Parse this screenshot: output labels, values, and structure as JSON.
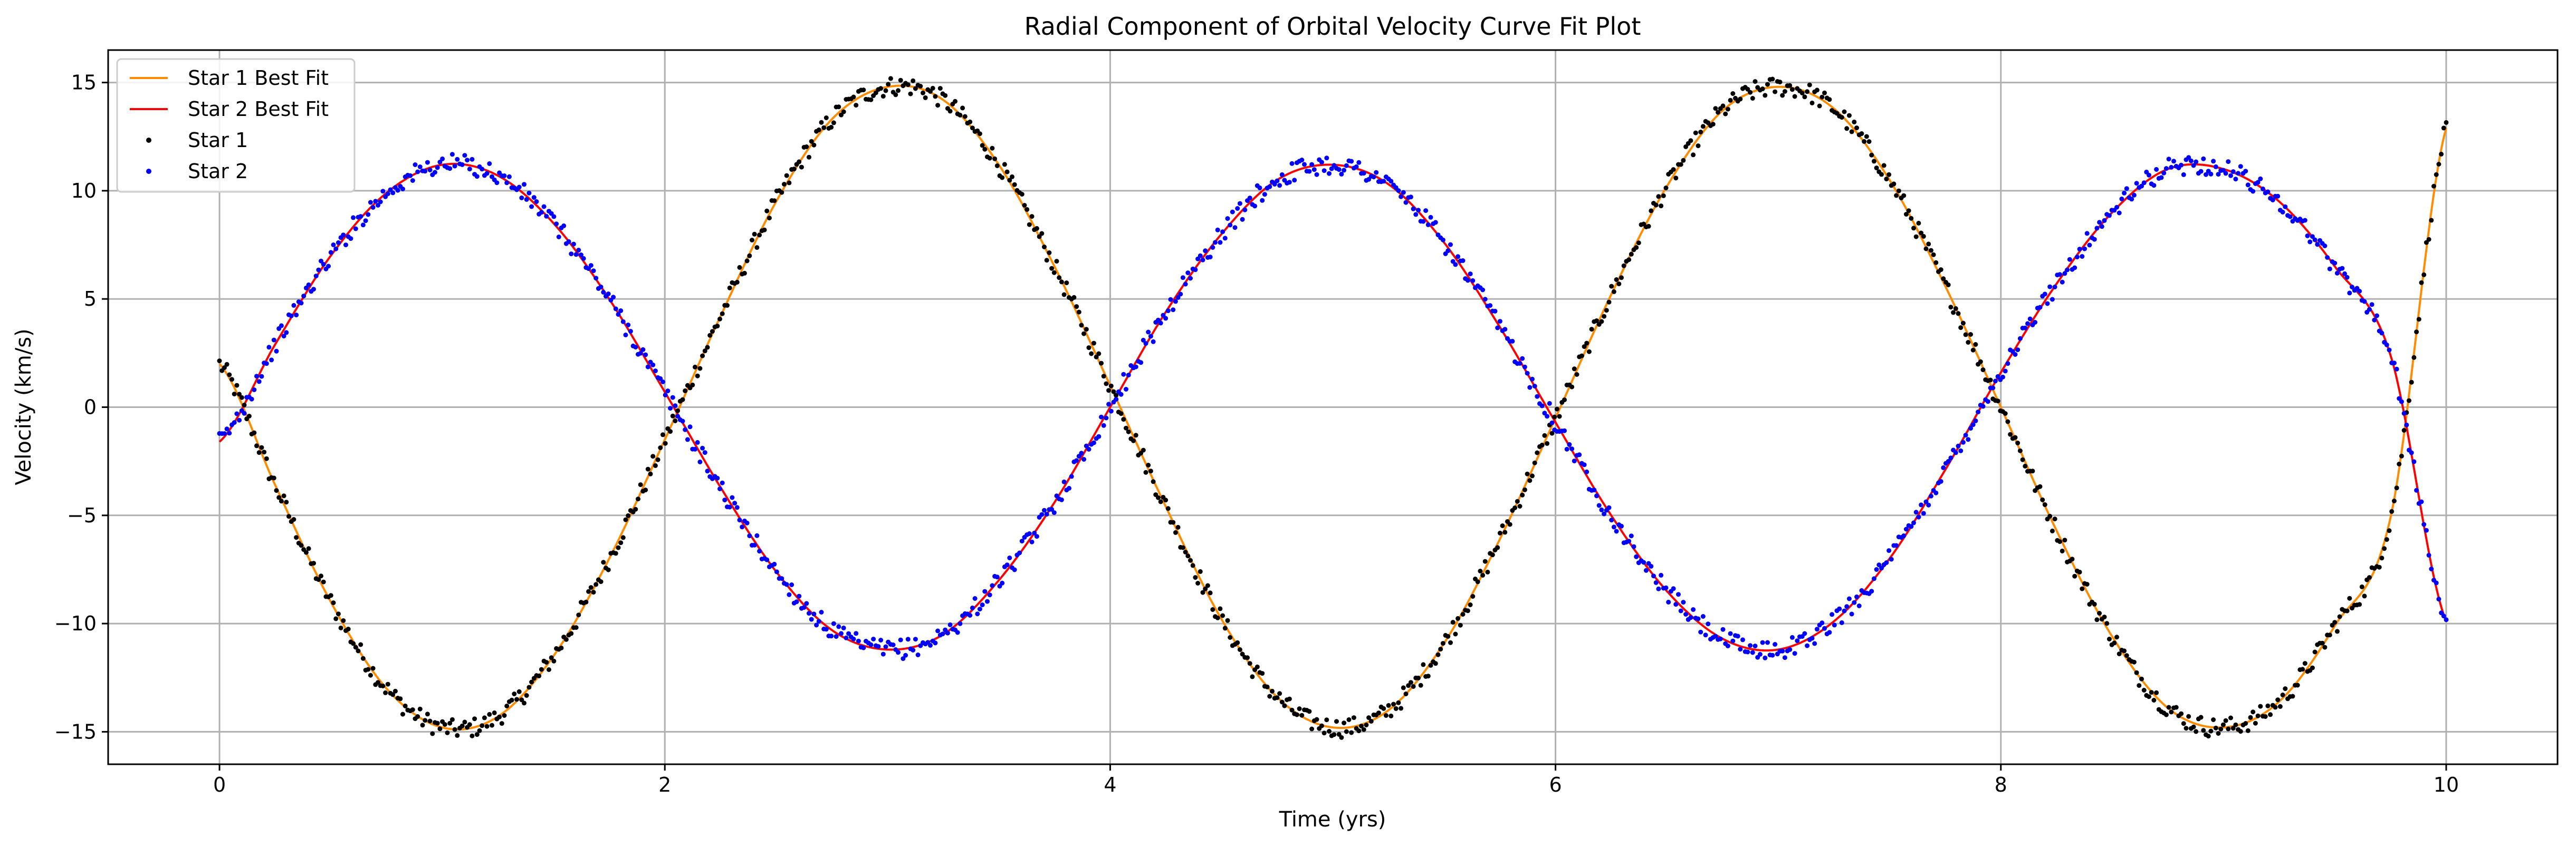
{
  "chart_data": {
    "type": "scatter",
    "title": "Radial Component of Orbital Velocity Curve Fit Plot",
    "xlabel": "Time (yrs)",
    "ylabel": "Velocity (km/s)",
    "xlim": [
      -0.5,
      10.5
    ],
    "ylim": [
      -16.5,
      16.5
    ],
    "xticks": [
      0,
      2,
      4,
      6,
      8,
      10
    ],
    "yticks": [
      -15,
      -10,
      -5,
      0,
      5,
      10,
      15
    ],
    "xtick_labels": [
      "0",
      "2",
      "4",
      "6",
      "8",
      "10"
    ],
    "ytick_labels": [
      "−15",
      "−10",
      "−5",
      "0",
      "5",
      "10",
      "15"
    ],
    "grid": true,
    "legend_position": "top-left",
    "colors": {
      "star1_fit": "#ff8c00",
      "star2_fit": "#ff0000",
      "star1_points": "#000000",
      "star2_points": "#0000ff",
      "grid": "#b0b0b0"
    },
    "series": [
      {
        "name": "Star 1 Best Fit",
        "kind": "line",
        "x": [
          0.0,
          0.25,
          0.5,
          0.75,
          1.0,
          1.25,
          1.5,
          1.75,
          2.0,
          2.25,
          2.5,
          2.75,
          3.0,
          3.25,
          3.5,
          3.75,
          4.0,
          4.25,
          4.5,
          4.75,
          5.0,
          5.25,
          5.5,
          5.75,
          6.0,
          6.25,
          6.5,
          6.75,
          7.0,
          7.25,
          7.5,
          7.75,
          8.0,
          8.25,
          8.5,
          8.75,
          9.0,
          9.25,
          9.5,
          9.75,
          10.0
        ],
        "y": [
          2.0,
          -3.6,
          -9.0,
          -13.0,
          -14.8,
          -14.3,
          -11.5,
          -7.0,
          -1.5,
          4.2,
          9.5,
          13.3,
          14.8,
          14.2,
          11.2,
          6.5,
          1.0,
          -4.6,
          -9.8,
          -13.4,
          -14.8,
          -14.0,
          -10.9,
          -6.1,
          -0.5,
          5.2,
          10.2,
          13.7,
          14.8,
          13.8,
          10.5,
          5.6,
          0.0,
          -5.7,
          -10.6,
          -13.9,
          -14.8,
          -13.6,
          -10.1,
          -5.1,
          12.9
        ]
      },
      {
        "name": "Star 2 Best Fit",
        "kind": "line",
        "x": [
          0.0,
          0.25,
          0.5,
          0.75,
          1.0,
          1.25,
          1.5,
          1.75,
          2.0,
          2.25,
          2.5,
          2.75,
          3.0,
          3.25,
          3.5,
          3.75,
          4.0,
          4.25,
          4.5,
          4.75,
          5.0,
          5.25,
          5.5,
          5.75,
          6.0,
          6.25,
          6.5,
          6.75,
          7.0,
          7.25,
          7.5,
          7.75,
          8.0,
          8.25,
          8.5,
          8.75,
          9.0,
          9.25,
          9.5,
          9.75,
          10.0
        ],
        "y": [
          -1.6,
          2.9,
          7.0,
          9.9,
          11.2,
          10.7,
          8.5,
          5.0,
          0.7,
          -3.7,
          -7.6,
          -10.3,
          -11.2,
          -10.5,
          -8.0,
          -4.4,
          0.0,
          4.4,
          8.0,
          10.5,
          11.2,
          10.3,
          7.6,
          3.7,
          -0.7,
          -5.0,
          -8.5,
          -10.7,
          -11.2,
          -9.9,
          -7.0,
          -2.9,
          1.6,
          5.7,
          9.0,
          11.0,
          11.0,
          9.5,
          6.5,
          2.4,
          -9.9
        ]
      },
      {
        "name": "Star 1",
        "kind": "points",
        "source_series": 0
      },
      {
        "name": "Star 2",
        "kind": "points",
        "source_series": 1
      }
    ]
  }
}
